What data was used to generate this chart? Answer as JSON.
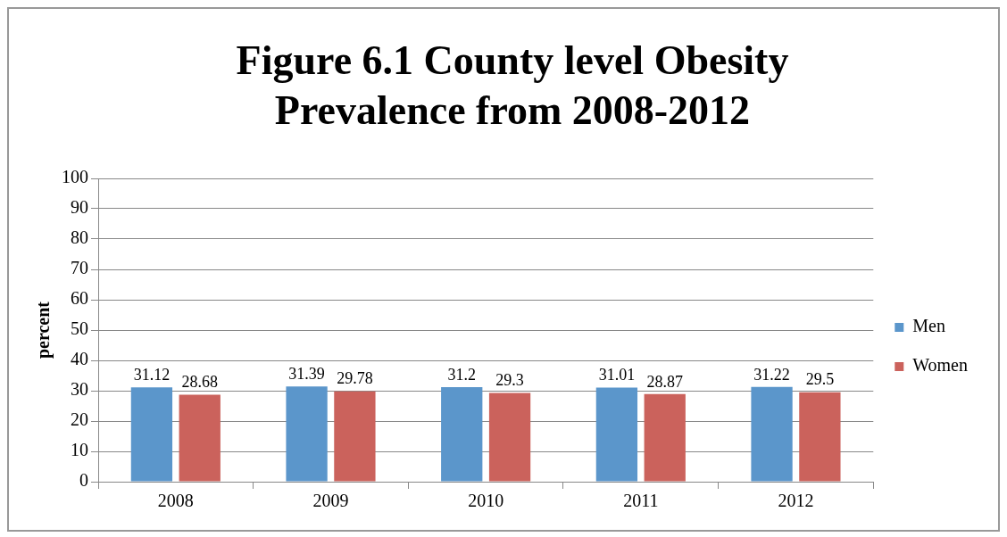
{
  "chart_data": {
    "type": "bar",
    "title": "Figure 6.1 County level Obesity Prevalence from 2008-2012",
    "ylabel": "percent",
    "categories": [
      "2008",
      "2009",
      "2010",
      "2011",
      "2012"
    ],
    "series": [
      {
        "name": "Men",
        "color": "#5b96cb",
        "values": [
          31.12,
          31.39,
          31.2,
          31.01,
          31.22
        ]
      },
      {
        "name": "Women",
        "color": "#cb625c",
        "values": [
          28.68,
          29.78,
          29.3,
          28.87,
          29.5
        ]
      }
    ],
    "ylim": [
      0,
      100
    ],
    "yticks": [
      0,
      10,
      20,
      30,
      40,
      50,
      60,
      70,
      80,
      90,
      100
    ],
    "grid": "y",
    "legend": "right",
    "data_labels": true
  }
}
